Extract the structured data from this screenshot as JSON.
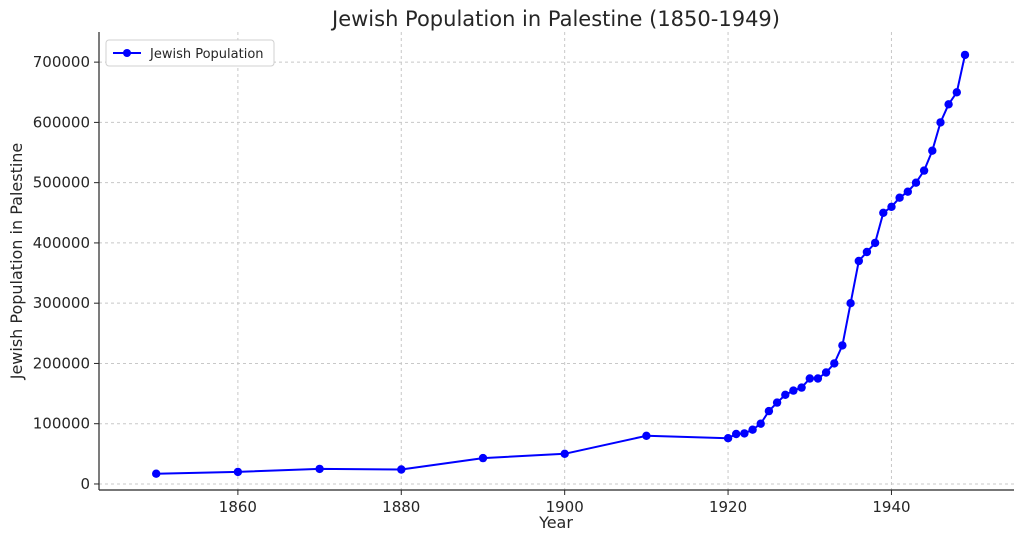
{
  "chart_data": {
    "type": "line",
    "title": "Jewish Population in Palestine (1850-1949)",
    "xlabel": "Year",
    "ylabel": "Jewish Population in Palestine",
    "xlim": [
      1843,
      1955
    ],
    "ylim": [
      -10000,
      750000
    ],
    "xticks": [
      1860,
      1880,
      1900,
      1920,
      1940
    ],
    "yticks": [
      0,
      100000,
      200000,
      300000,
      400000,
      500000,
      600000,
      700000
    ],
    "grid": true,
    "legend_position": "top-left",
    "series": [
      {
        "name": "Jewish Population",
        "color": "#0000ff",
        "marker": "circle",
        "x": [
          1850,
          1860,
          1870,
          1880,
          1890,
          1900,
          1910,
          1920,
          1921,
          1922,
          1923,
          1924,
          1925,
          1926,
          1927,
          1928,
          1929,
          1930,
          1931,
          1932,
          1933,
          1934,
          1935,
          1936,
          1937,
          1938,
          1939,
          1940,
          1941,
          1942,
          1943,
          1944,
          1945,
          1946,
          1947,
          1948,
          1949
        ],
        "y": [
          17000,
          20000,
          25000,
          24000,
          43000,
          50000,
          80000,
          76000,
          83000,
          84000,
          90000,
          100000,
          121000,
          135000,
          148000,
          155000,
          160000,
          175000,
          175000,
          185000,
          200000,
          230000,
          300000,
          370000,
          385000,
          400000,
          450000,
          460000,
          475000,
          485000,
          500000,
          520000,
          553000,
          600000,
          630000,
          650000,
          712000
        ]
      }
    ]
  }
}
